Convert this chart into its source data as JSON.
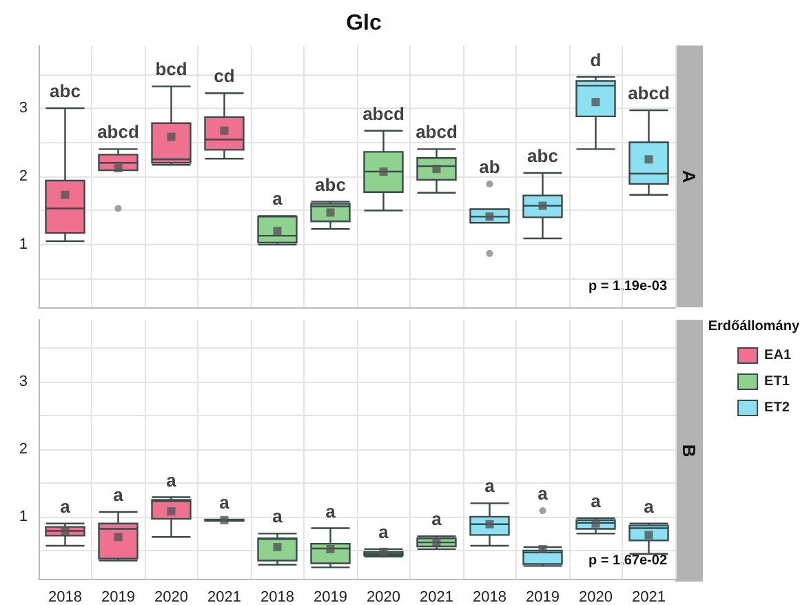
{
  "chart_data": [
    {
      "type": "box",
      "title": "Glc",
      "subtitle": "A",
      "categories": [
        "2018",
        "2019",
        "2020",
        "2021",
        "2018",
        "2019",
        "2020",
        "2021",
        "2018",
        "2019",
        "2020",
        "2021"
      ],
      "series": [
        {
          "name": "EA1",
          "color": "#f07090",
          "boxes": [
            {
              "low": 1.05,
              "q1": 1.17,
              "median": 1.53,
              "q3": 1.94,
              "high": 3.0,
              "mean": 1.73
            },
            {
              "low": 2.09,
              "q1": 2.09,
              "median": 2.2,
              "q3": 2.32,
              "high": 2.4,
              "mean": 2.12,
              "outliers": [
                1.53
              ]
            },
            {
              "low": 2.17,
              "q1": 2.2,
              "median": 2.25,
              "q3": 2.78,
              "high": 3.32,
              "mean": 2.58
            },
            {
              "low": 2.26,
              "q1": 2.39,
              "median": 2.54,
              "q3": 2.87,
              "high": 3.22,
              "mean": 2.67
            },
            null,
            null,
            null,
            null,
            null,
            null,
            null,
            null
          ]
        },
        {
          "name": "ET1",
          "color": "#8fd18f",
          "boxes": [
            null,
            null,
            null,
            null,
            {
              "low": 1.0,
              "q1": 1.03,
              "median": 1.13,
              "q3": 1.41,
              "high": 1.42,
              "mean": 1.2
            },
            {
              "low": 1.23,
              "q1": 1.34,
              "median": 1.56,
              "q3": 1.6,
              "high": 1.63,
              "mean": 1.47
            },
            {
              "low": 1.5,
              "q1": 1.77,
              "median": 2.07,
              "q3": 2.36,
              "high": 2.67,
              "mean": 2.07
            },
            {
              "low": 1.76,
              "q1": 1.95,
              "median": 2.15,
              "q3": 2.27,
              "high": 2.4,
              "mean": 2.11
            },
            null,
            null,
            null,
            null
          ]
        },
        {
          "name": "ET2",
          "color": "#8ddff2",
          "boxes": [
            null,
            null,
            null,
            null,
            null,
            null,
            null,
            null,
            {
              "low": 1.32,
              "q1": 1.32,
              "median": 1.41,
              "q3": 1.52,
              "high": 1.52,
              "mean": 1.41,
              "outliers": [
                1.89,
                0.87
              ]
            },
            {
              "low": 1.09,
              "q1": 1.4,
              "median": 1.57,
              "q3": 1.72,
              "high": 2.05,
              "mean": 1.57
            },
            {
              "low": 2.4,
              "q1": 2.88,
              "median": 3.33,
              "q3": 3.4,
              "high": 3.46,
              "mean": 3.09
            },
            {
              "low": 1.73,
              "q1": 1.89,
              "median": 2.04,
              "q3": 2.5,
              "high": 2.97,
              "mean": 2.25
            }
          ]
        }
      ],
      "ylim": [
        0.08,
        3.92
      ],
      "yticks": [
        {
          "value": 0.5,
          "label": null
        },
        1,
        {
          "value": 1.5,
          "label": null
        },
        2,
        {
          "value": 2.5,
          "label": null
        },
        3,
        {
          "value": 3.5,
          "label": null
        }
      ],
      "grid": true,
      "legend": "right",
      "legend_title": "Erdőállomány",
      "tick_labels": "y",
      "annotations": [
        "abc",
        "abcd",
        "bcd",
        "cd",
        "a",
        "abc",
        "abcd",
        "abcd",
        "ab",
        "abc",
        "d",
        "abcd",
        "p = 1,19e-03"
      ]
    },
    {
      "type": "box",
      "subtitle": "B",
      "categories": [
        "2018",
        "2019",
        "2020",
        "2021",
        "2018",
        "2019",
        "2020",
        "2021",
        "2018",
        "2019",
        "2020",
        "2021"
      ],
      "series": [
        {
          "color": "#f07090",
          "boxes": [
            {
              "low": 0.57,
              "q1": 0.72,
              "median": 0.79,
              "q3": 0.85,
              "high": 0.9,
              "mean": 0.79
            },
            {
              "low": 0.35,
              "q1": 0.38,
              "median": 0.82,
              "q3": 0.9,
              "high": 1.07,
              "mean": 0.7
            },
            {
              "low": 0.7,
              "q1": 0.97,
              "median": 1.23,
              "q3": 1.25,
              "high": 1.29,
              "mean": 1.08
            },
            {
              "low": 0.94,
              "q1": 0.94,
              "median": 0.95,
              "q3": 0.96,
              "high": 0.96,
              "mean": 0.95
            },
            null,
            null,
            null,
            null,
            null,
            null,
            null,
            null
          ]
        },
        {
          "color": "#8fd18f",
          "boxes": [
            null,
            null,
            null,
            null,
            {
              "low": 0.29,
              "q1": 0.35,
              "median": 0.67,
              "q3": 0.68,
              "high": 0.75,
              "mean": 0.55
            },
            {
              "low": 0.25,
              "q1": 0.31,
              "median": 0.53,
              "q3": 0.6,
              "high": 0.83,
              "mean": 0.52
            },
            {
              "low": 0.41,
              "q1": 0.43,
              "median": 0.45,
              "q3": 0.48,
              "high": 0.52,
              "mean": 0.48
            },
            {
              "low": 0.52,
              "q1": 0.56,
              "median": 0.62,
              "q3": 0.68,
              "high": 0.71,
              "mean": 0.63
            },
            null,
            null,
            null,
            null
          ]
        },
        {
          "color": "#8ddff2",
          "boxes": [
            null,
            null,
            null,
            null,
            null,
            null,
            null,
            null,
            {
              "low": 0.57,
              "q1": 0.73,
              "median": 0.89,
              "q3": 1.0,
              "high": 1.2,
              "mean": 0.89
            },
            {
              "low": 0.27,
              "q1": 0.3,
              "median": 0.47,
              "q3": 0.5,
              "high": 0.55,
              "mean": 0.52,
              "outliers": [
                1.09
              ]
            },
            {
              "low": 0.75,
              "q1": 0.82,
              "median": 0.91,
              "q3": 0.95,
              "high": 0.98,
              "mean": 0.9
            },
            {
              "low": 0.45,
              "q1": 0.65,
              "median": 0.83,
              "q3": 0.87,
              "high": 0.9,
              "mean": 0.73
            }
          ]
        }
      ],
      "ylim": [
        0.08,
        3.92
      ],
      "yticks": [
        {
          "value": 0.5,
          "label": null
        },
        1,
        {
          "value": 1.5,
          "label": null
        },
        2,
        {
          "value": 2.5,
          "label": null
        },
        3,
        {
          "value": 3.5,
          "label": null
        }
      ],
      "grid": true,
      "annotations": [
        "a",
        "a",
        "a",
        "a",
        "a",
        "a",
        "a",
        "a",
        "a",
        "a",
        "a",
        "a",
        "p = 1,67e-02"
      ]
    }
  ]
}
